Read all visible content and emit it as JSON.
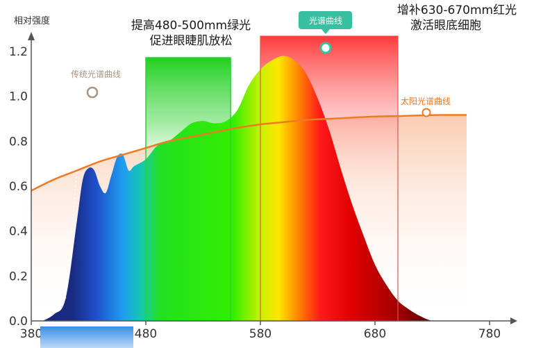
{
  "chart_data": {
    "type": "area",
    "ylabel": "相对强度",
    "xlabel": "",
    "x_ticks": [
      380,
      480,
      580,
      680,
      780
    ],
    "y_ticks": [
      "0.0",
      "0.2",
      "0.4",
      "0.6",
      "0.8",
      "1.0",
      "1.2"
    ],
    "xlim": [
      380,
      780
    ],
    "ylim": [
      0,
      1.2
    ],
    "series": [
      {
        "name": "光谱曲线",
        "x": [
          390,
          400,
          410,
          420,
          425,
          430,
          435,
          440,
          445,
          450,
          455,
          460,
          465,
          470,
          480,
          490,
          500,
          510,
          520,
          530,
          540,
          550,
          560,
          570,
          580,
          590,
          600,
          610,
          620,
          630,
          640,
          650,
          660,
          670,
          680,
          690,
          700,
          710,
          720,
          730,
          740,
          750,
          760,
          770
        ],
        "values": [
          0.0,
          0.03,
          0.1,
          0.45,
          0.63,
          0.68,
          0.67,
          0.6,
          0.57,
          0.65,
          0.73,
          0.74,
          0.67,
          0.69,
          0.72,
          0.78,
          0.8,
          0.84,
          0.88,
          0.89,
          0.88,
          0.89,
          0.94,
          1.05,
          1.12,
          1.16,
          1.18,
          1.16,
          1.1,
          0.99,
          0.85,
          0.68,
          0.52,
          0.38,
          0.25,
          0.16,
          0.09,
          0.05,
          0.02,
          0.0,
          0.0,
          0.0,
          0.0,
          0.0
        ]
      },
      {
        "name": "太阳光谱曲线",
        "x": [
          380,
          400,
          420,
          440,
          460,
          480,
          500,
          520,
          540,
          560,
          580,
          600,
          620,
          640,
          660,
          680,
          700,
          720,
          740,
          760
        ],
        "values": [
          0.58,
          0.63,
          0.67,
          0.71,
          0.74,
          0.77,
          0.8,
          0.82,
          0.84,
          0.86,
          0.875,
          0.885,
          0.895,
          0.9,
          0.905,
          0.91,
          0.912,
          0.915,
          0.917,
          0.917
        ]
      }
    ],
    "highlights": [
      {
        "range": [
          480,
          554
        ],
        "color": "#22cc22",
        "text": [
          "提高480-500mm绿光",
          "促进眼睫肌放松"
        ]
      },
      {
        "range": [
          580,
          700
        ],
        "color": "#ff4444",
        "text": [
          "增补630-670mm红光",
          "激活眼底细胞"
        ]
      }
    ],
    "legend": {
      "spectrum": "光谱曲线",
      "sun": "太阳光谱曲线",
      "traditional": "传统光谱曲线"
    },
    "colors": {
      "sun_curve": "#f07a23",
      "badge": "#38c0a0",
      "axis": "#555555",
      "trad_marker": "#a89480"
    }
  }
}
